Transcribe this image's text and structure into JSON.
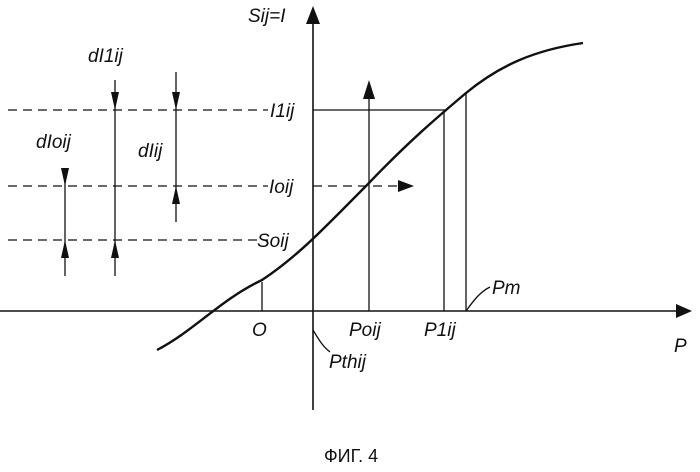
{
  "labels": {
    "y_axis": "Sij=I",
    "x_axis": "P",
    "I1ij": "I1ij",
    "Ioij": "Ioij",
    "Soij": "Soij",
    "O": "O",
    "Poij": "Poij",
    "P1ij": "P1ij",
    "Pm": "Pm",
    "Pthij": "Pthij",
    "dI1ij": "dI1ij",
    "dIoij": "dIoij",
    "dIij": "dIij"
  },
  "caption": "ФИГ. 4"
}
